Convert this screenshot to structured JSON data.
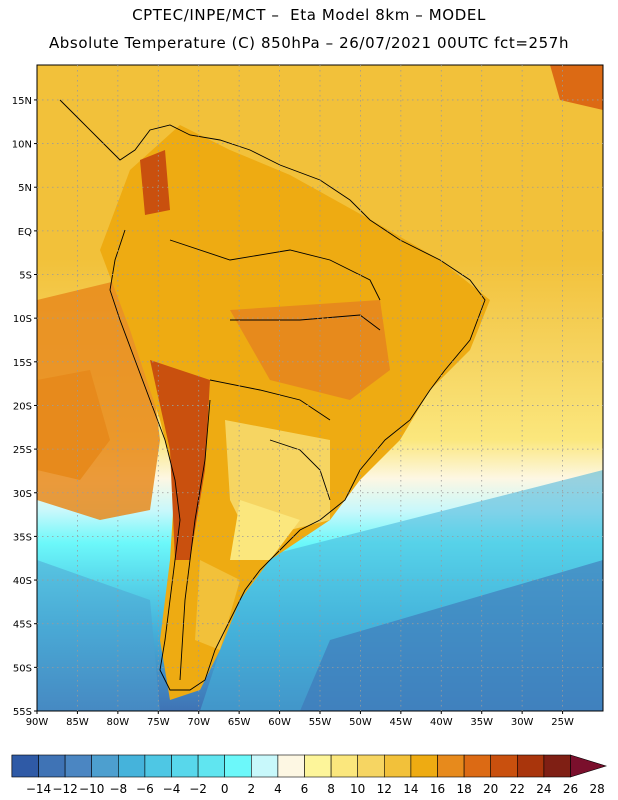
{
  "header": {
    "line1": "CPTEC/INPE/MCT –  Eta Model 8km – MODEL",
    "line2": "Absolute Temperature (C) 850hPa – 26/07/2021 00UTC fct=257h"
  },
  "map": {
    "lon_range": [
      -90,
      -20
    ],
    "lat_range": [
      -55,
      19
    ],
    "lat_labels": [
      {
        "v": 15,
        "t": "15N"
      },
      {
        "v": 10,
        "t": "10N"
      },
      {
        "v": 5,
        "t": "5N"
      },
      {
        "v": 0,
        "t": "EQ"
      },
      {
        "v": -5,
        "t": "5S"
      },
      {
        "v": -10,
        "t": "10S"
      },
      {
        "v": -15,
        "t": "15S"
      },
      {
        "v": -20,
        "t": "20S"
      },
      {
        "v": -25,
        "t": "25S"
      },
      {
        "v": -30,
        "t": "30S"
      },
      {
        "v": -35,
        "t": "35S"
      },
      {
        "v": -40,
        "t": "40S"
      },
      {
        "v": -45,
        "t": "45S"
      },
      {
        "v": -50,
        "t": "50S"
      },
      {
        "v": -55,
        "t": "55S"
      }
    ],
    "lon_labels": [
      {
        "v": -90,
        "t": "90W"
      },
      {
        "v": -85,
        "t": "85W"
      },
      {
        "v": -80,
        "t": "80W"
      },
      {
        "v": -75,
        "t": "75W"
      },
      {
        "v": -70,
        "t": "70W"
      },
      {
        "v": -65,
        "t": "65W"
      },
      {
        "v": -60,
        "t": "60W"
      },
      {
        "v": -55,
        "t": "55W"
      },
      {
        "v": -50,
        "t": "50W"
      },
      {
        "v": -45,
        "t": "45W"
      },
      {
        "v": -40,
        "t": "40W"
      },
      {
        "v": -35,
        "t": "35W"
      },
      {
        "v": -30,
        "t": "30W"
      },
      {
        "v": -25,
        "t": "25W"
      }
    ],
    "grid": "dotted"
  },
  "colorbar": {
    "labels": [
      "-14",
      "-12",
      "-10",
      "-8",
      "-6",
      "-4",
      "-2",
      "0",
      "2",
      "4",
      "6",
      "8",
      "10",
      "12",
      "14",
      "16",
      "18",
      "20",
      "22",
      "24",
      "26",
      "28"
    ],
    "colors": [
      "#1d3d8f",
      "#2f5aa6",
      "#3f73b5",
      "#4b86c2",
      "#4d9fcf",
      "#45b3db",
      "#4ec7e4",
      "#58d7eb",
      "#60e5f0",
      "#6cf8fa",
      "#c8f8fb",
      "#fdf7e3",
      "#fdf59a",
      "#fbe77d",
      "#f6d562",
      "#f2c13a",
      "#eeab12",
      "#e78a1c",
      "#dc6a14",
      "#c9500e",
      "#a9350c",
      "#7f1f14",
      "#7a0f2c"
    ]
  }
}
